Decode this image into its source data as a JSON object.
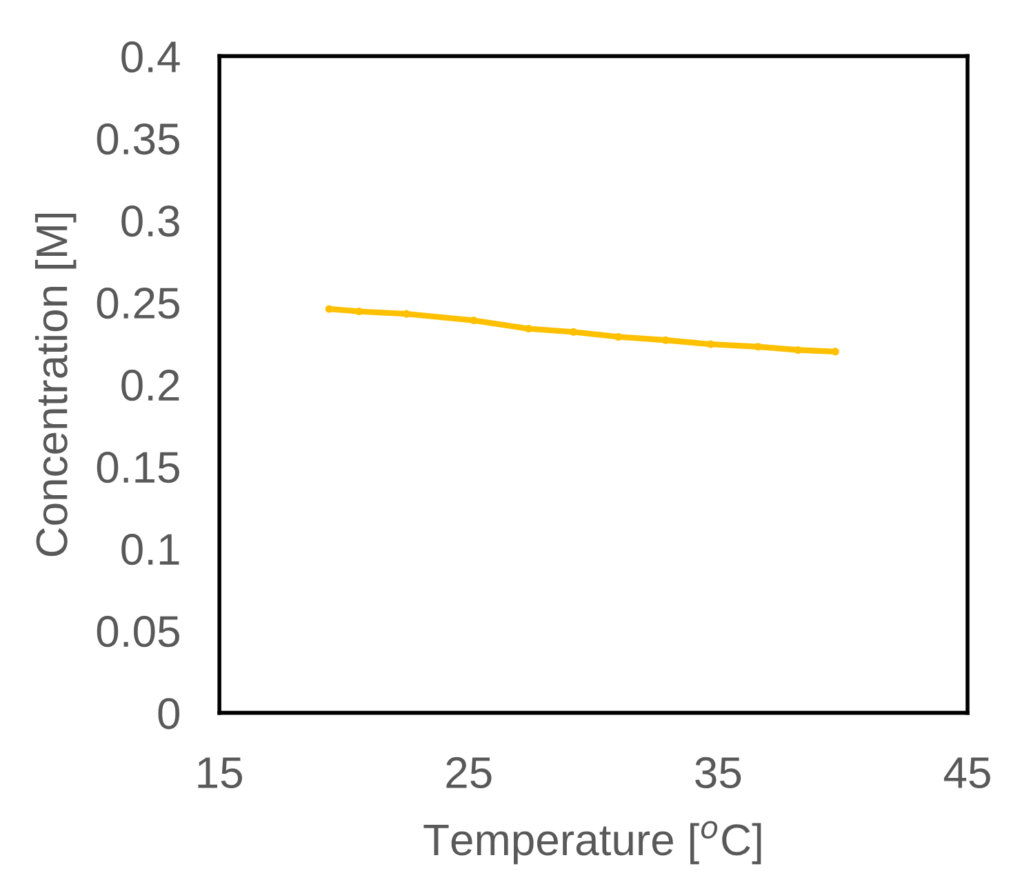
{
  "chart_data": {
    "type": "line",
    "xlabel": "Temperature [$^{o}$C]",
    "ylabel": "Concentration [M]",
    "series": [
      {
        "color": "#ffc000",
        "x": [
          19.4,
          20.6,
          22.5,
          25.2,
          27.4,
          29.2,
          31.0,
          32.9,
          34.7,
          36.6,
          38.2,
          39.7
        ],
        "values": [
          0.246,
          0.2445,
          0.243,
          0.239,
          0.234,
          0.232,
          0.229,
          0.227,
          0.2245,
          0.223,
          0.221,
          0.22
        ]
      }
    ],
    "xlim": [
      15,
      45
    ],
    "xticks": [
      15,
      25,
      35,
      45
    ],
    "ylim": [
      0,
      0.4
    ],
    "yticks": [
      0,
      0.05,
      0.1,
      0.15,
      0.2,
      0.25,
      0.3,
      0.35,
      0.4
    ],
    "grid": false,
    "legend": false,
    "marker": "circle",
    "line_style": "solid"
  }
}
